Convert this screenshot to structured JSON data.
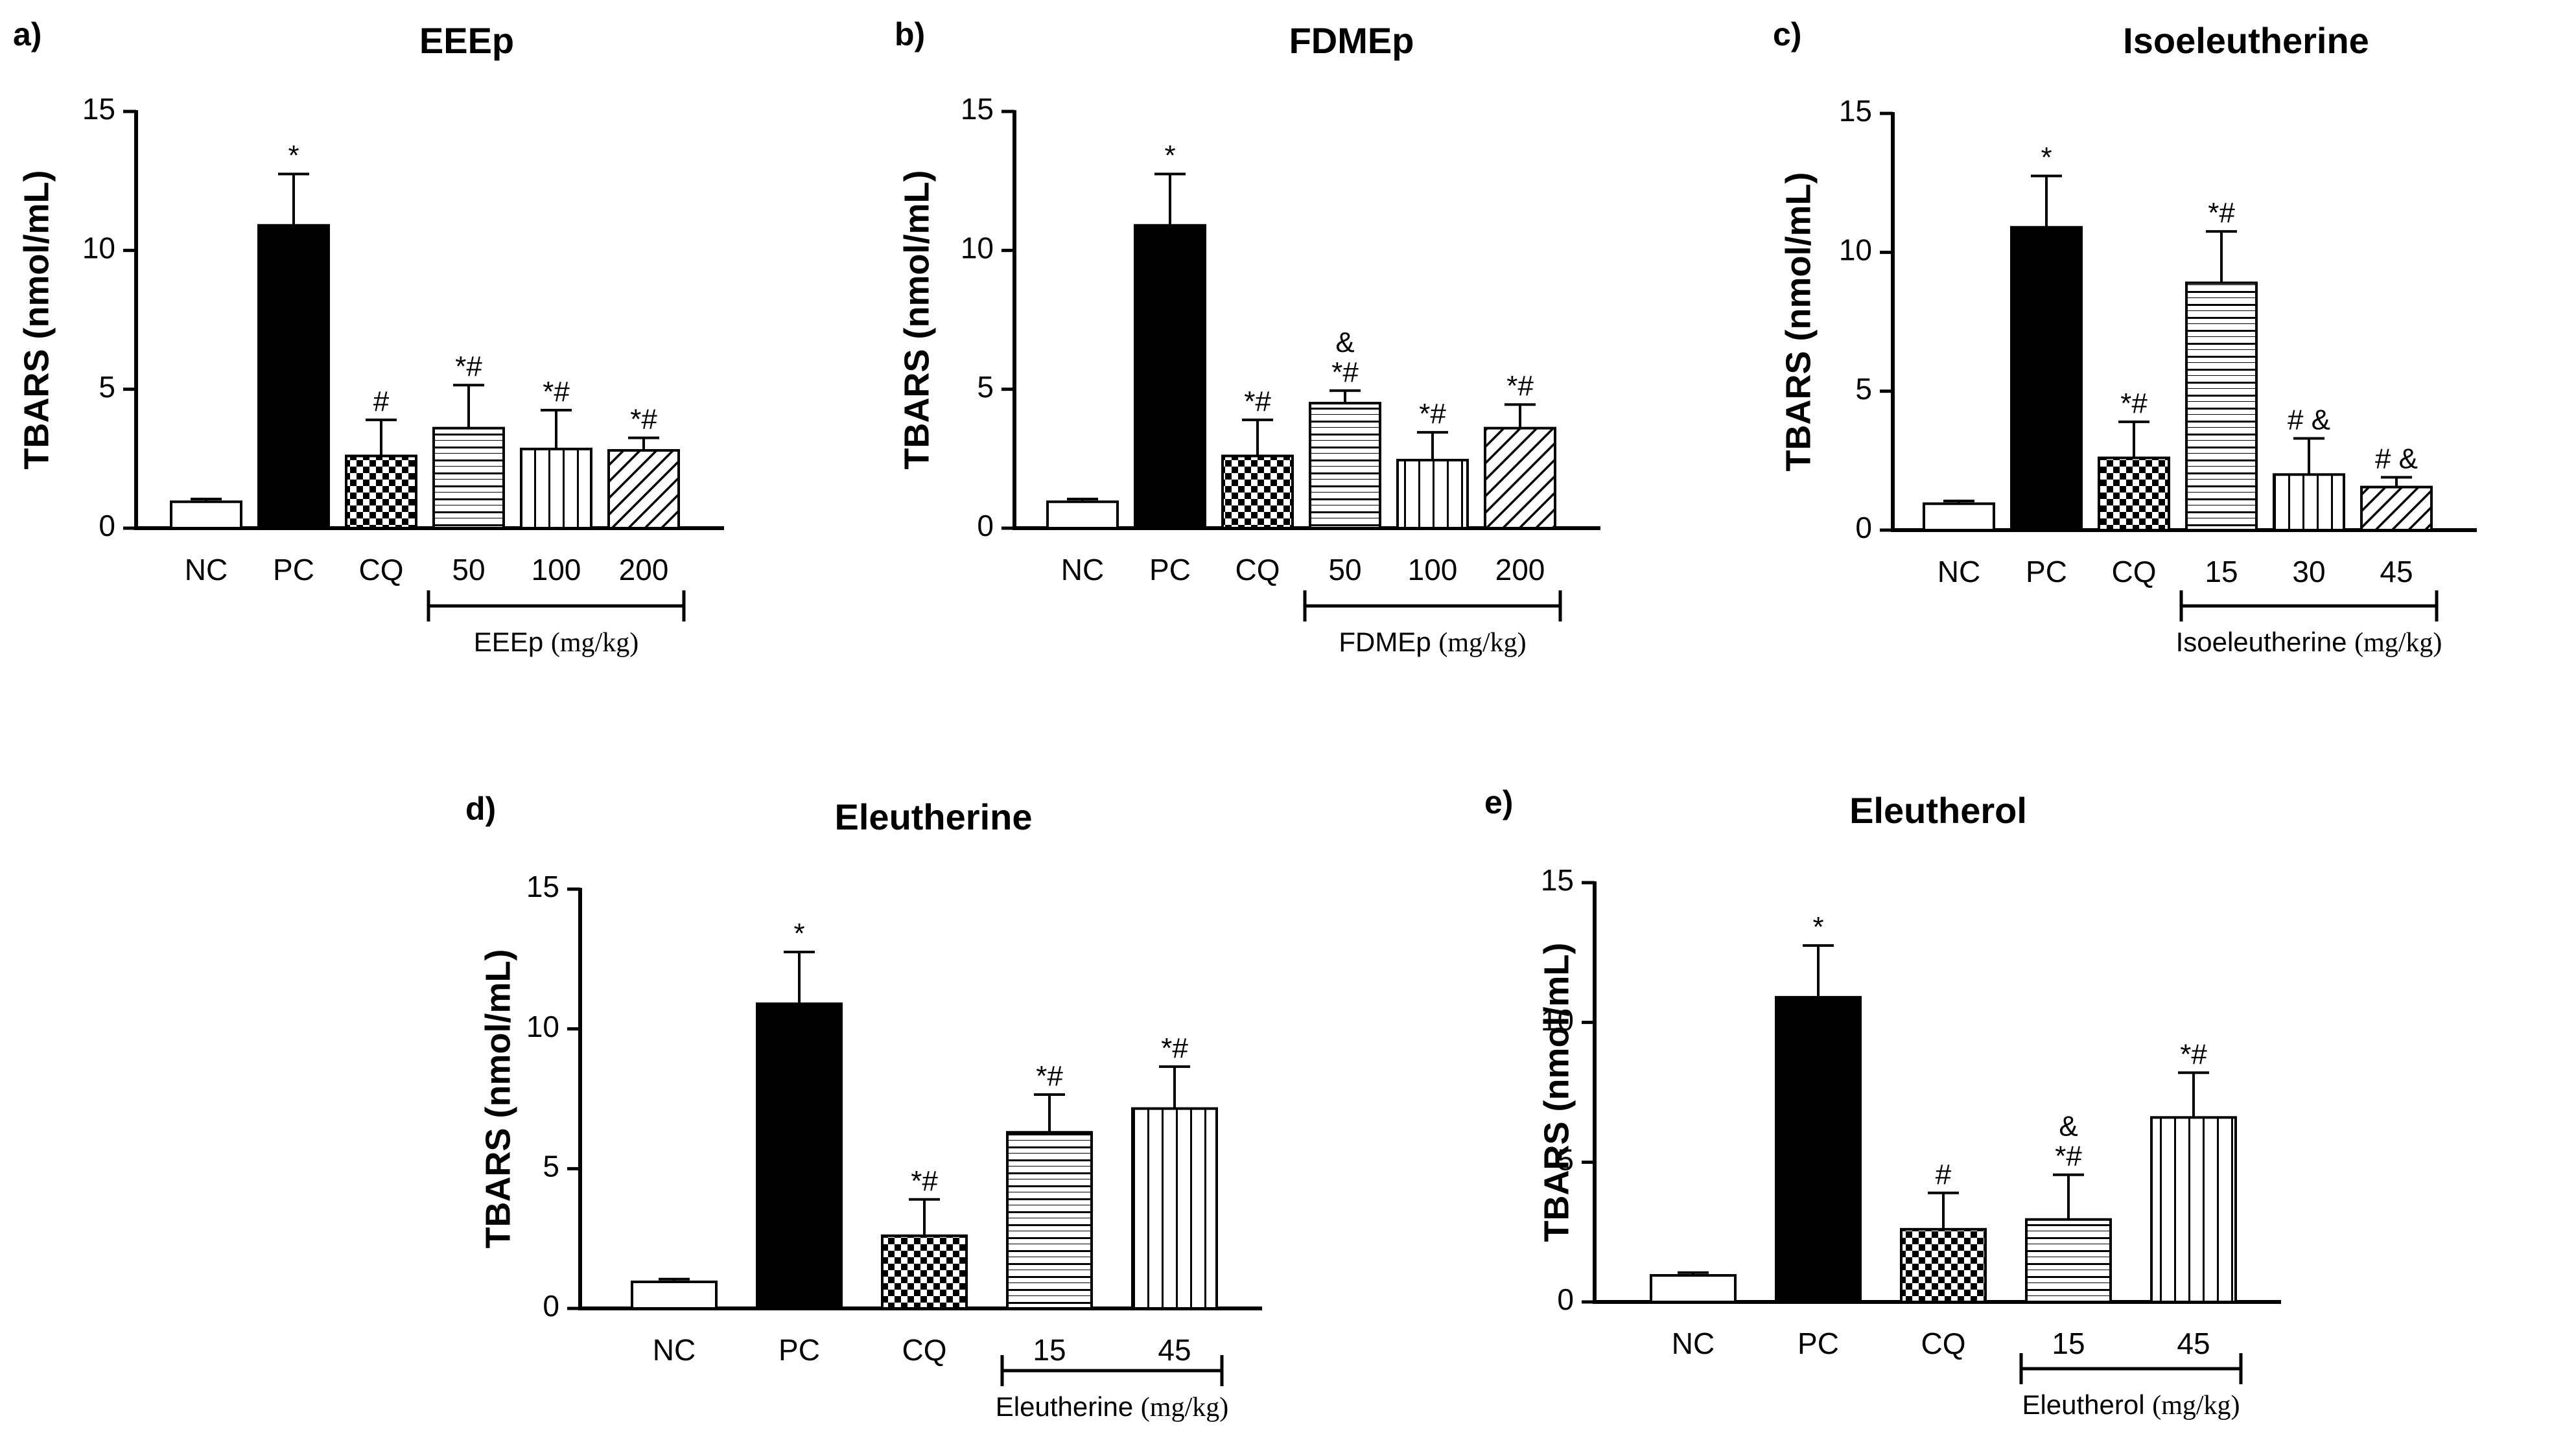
{
  "chart_data": [
    {
      "type": "bar",
      "panel_label": "a)",
      "title": "EEEp",
      "ylabel": "TBARS (nmol/mL)",
      "xlabel": "",
      "ylim": [
        0,
        15
      ],
      "yticks": [
        "0",
        "5",
        "10",
        "15"
      ],
      "grid": false,
      "categories": [
        "NC",
        "PC",
        "CQ",
        "50",
        "100",
        "200"
      ],
      "values": [
        0.95,
        10.9,
        2.6,
        3.6,
        2.85,
        2.8
      ],
      "errors": [
        0.1,
        1.85,
        1.3,
        1.55,
        1.4,
        0.45
      ],
      "patterns": [
        "white",
        "black",
        "checker",
        "hlines",
        "vlines",
        "diag"
      ],
      "annotations": [
        [],
        [
          "*"
        ],
        [
          "#"
        ],
        [
          "*#"
        ],
        [
          "*#"
        ],
        [
          "*#"
        ]
      ],
      "dose_group": {
        "label": "EEEp",
        "unit": "(mg/kg)",
        "from": 3,
        "to": 5
      }
    },
    {
      "type": "bar",
      "panel_label": "b)",
      "title": "FDMEp",
      "ylabel": "TBARS (nmol/mL)",
      "xlabel": "",
      "ylim": [
        0,
        15
      ],
      "yticks": [
        "0",
        "5",
        "10",
        "15"
      ],
      "grid": false,
      "categories": [
        "NC",
        "PC",
        "CQ",
        "50",
        "100",
        "200"
      ],
      "values": [
        0.95,
        10.9,
        2.6,
        4.5,
        2.45,
        3.6
      ],
      "errors": [
        0.1,
        1.85,
        1.3,
        0.45,
        1.0,
        0.85
      ],
      "patterns": [
        "white",
        "black",
        "checker",
        "hlines",
        "vlines",
        "diag"
      ],
      "annotations": [
        [],
        [
          "*"
        ],
        [
          "*#"
        ],
        [
          "&",
          "*#"
        ],
        [
          "*#"
        ],
        [
          "*#"
        ]
      ],
      "dose_group": {
        "label": "FDMEp",
        "unit": "(mg/kg)",
        "from": 3,
        "to": 5
      }
    },
    {
      "type": "bar",
      "panel_label": "c)",
      "title": "Isoeleutherine",
      "ylabel": "TBARS (nmol/mL)",
      "xlabel": "",
      "ylim": [
        0,
        15
      ],
      "yticks": [
        "0",
        "5",
        "10",
        "15"
      ],
      "grid": false,
      "categories": [
        "NC",
        "PC",
        "CQ",
        "15",
        "30",
        "45"
      ],
      "values": [
        0.95,
        10.9,
        2.6,
        8.9,
        2.0,
        1.55
      ],
      "errors": [
        0.1,
        1.85,
        1.3,
        1.85,
        1.3,
        0.35
      ],
      "patterns": [
        "white",
        "black",
        "checker",
        "hlines",
        "vlines",
        "diag"
      ],
      "annotations": [
        [],
        [
          "*"
        ],
        [
          "*#"
        ],
        [
          "*#"
        ],
        [
          "# &"
        ],
        [
          "# &"
        ]
      ],
      "dose_group": {
        "label": "Isoeleutherine",
        "unit": "(mg/kg)",
        "from": 3,
        "to": 5
      }
    },
    {
      "type": "bar",
      "panel_label": "d)",
      "title": "Eleutherine",
      "ylabel": "TBARS (nmol/mL)",
      "xlabel": "",
      "ylim": [
        0,
        15
      ],
      "yticks": [
        "0",
        "5",
        "10",
        "15"
      ],
      "grid": false,
      "categories": [
        "NC",
        "PC",
        "CQ",
        "15",
        "45"
      ],
      "values": [
        0.95,
        10.9,
        2.6,
        6.3,
        7.15
      ],
      "errors": [
        0.1,
        1.85,
        1.3,
        1.35,
        1.5
      ],
      "patterns": [
        "white",
        "black",
        "checker",
        "hlines",
        "vlines"
      ],
      "annotations": [
        [],
        [
          "*"
        ],
        [
          "*#"
        ],
        [
          "*#"
        ],
        [
          "*#"
        ]
      ],
      "dose_group": {
        "label": "Eleutherine",
        "unit": "(mg/kg)",
        "from": 3,
        "to": 4
      }
    },
    {
      "type": "bar",
      "panel_label": "e)",
      "title": "Eleutherol",
      "ylabel": "TBARS (nmol/mL)",
      "xlabel": "",
      "ylim": [
        0,
        15
      ],
      "yticks": [
        "0",
        "5",
        "10",
        "15"
      ],
      "grid": false,
      "categories": [
        "NC",
        "PC",
        "CQ",
        "15",
        "45"
      ],
      "values": [
        0.95,
        10.9,
        2.6,
        2.95,
        6.6
      ],
      "errors": [
        0.1,
        1.85,
        1.3,
        1.6,
        1.6
      ],
      "patterns": [
        "white",
        "black",
        "checker",
        "hlines",
        "vlines"
      ],
      "annotations": [
        [],
        [
          "*"
        ],
        [
          "#"
        ],
        [
          "&",
          "*#"
        ],
        [
          "*#"
        ]
      ],
      "dose_group": {
        "label": "Eleutherol",
        "unit": "(mg/kg)",
        "from": 3,
        "to": 4
      }
    }
  ],
  "colors": {
    "ink": "#000000",
    "paper": "#ffffff"
  }
}
